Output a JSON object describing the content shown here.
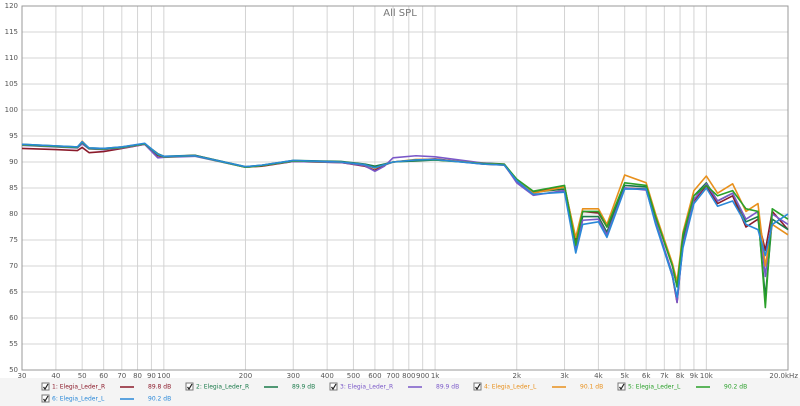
{
  "chart_data": {
    "type": "line",
    "title": "All SPL",
    "log_x": true,
    "grid": true,
    "x": [
      30,
      40,
      48,
      50,
      53,
      60,
      70,
      85,
      95,
      100,
      130,
      200,
      230,
      300,
      450,
      550,
      600,
      650,
      700,
      850,
      1000,
      1500,
      1800,
      2000,
      2300,
      3000,
      3300,
      3500,
      4000,
      4300,
      5000,
      6000,
      6500,
      7500,
      7800,
      8200,
      9000,
      10000,
      11000,
      12500,
      14000,
      15500,
      16500,
      17500,
      20000
    ],
    "xlim": [
      30,
      20000
    ],
    "xticks": [
      30,
      40,
      50,
      60,
      70,
      80,
      90,
      100,
      200,
      300,
      400,
      500,
      600,
      700,
      800,
      900,
      {
        "value": 1000,
        "label": "1k"
      },
      {
        "value": 2000,
        "label": "2k"
      },
      {
        "value": 3000,
        "label": "3k"
      },
      {
        "value": 4000,
        "label": "4k"
      },
      {
        "value": 5000,
        "label": "5k"
      },
      {
        "value": 6000,
        "label": "6k"
      },
      {
        "value": 7000,
        "label": "7k"
      },
      {
        "value": 8000,
        "label": "8k"
      },
      {
        "value": 9000,
        "label": "9k"
      },
      {
        "value": 10000,
        "label": "10k"
      },
      {
        "value": 20000,
        "label": "20.0kHz"
      }
    ],
    "ylim": [
      50,
      120
    ],
    "yticks": [
      50,
      55,
      60,
      65,
      70,
      75,
      80,
      85,
      90,
      95,
      100,
      105,
      110,
      115,
      120
    ],
    "series": [
      {
        "name": "1: Elegia_Leder_R",
        "color": "#8b1a2a",
        "level_label": "89.8 dB",
        "values": [
          92.6,
          92.4,
          92.2,
          92.8,
          91.8,
          92,
          92.6,
          93.4,
          91.2,
          91,
          91.3,
          89,
          89.2,
          90.1,
          89.9,
          89.2,
          88.4,
          89.4,
          90,
          90.4,
          90.6,
          89.6,
          89.4,
          86.2,
          84.2,
          85.4,
          75,
          80.5,
          80.2,
          77.5,
          85,
          84.8,
          78.5,
          68,
          63,
          74.5,
          82.5,
          85.5,
          82,
          83.5,
          77.5,
          79,
          73,
          80.5,
          77
        ]
      },
      {
        "name": "2: Elegia_Leder_R",
        "color": "#1a7a4a",
        "level_label": "89.9 dB",
        "values": [
          93.4,
          93.1,
          92.9,
          93.6,
          92.7,
          92.6,
          92.9,
          93.5,
          91.6,
          91.1,
          91.3,
          89.1,
          89.4,
          90.3,
          90.1,
          89.6,
          89.2,
          89.6,
          90,
          90.2,
          90.4,
          89.8,
          89.6,
          86.6,
          84.2,
          84.8,
          73.5,
          79.5,
          79.5,
          76.5,
          85.5,
          85.2,
          79.5,
          70,
          66,
          75.5,
          83.5,
          86,
          82.5,
          84,
          78.5,
          79.5,
          64,
          79,
          77
        ]
      },
      {
        "name": "3: Elegia_Leder_R",
        "color": "#7a58c8",
        "level_label": "89.9 dB",
        "values": [
          93.2,
          92.9,
          92.7,
          93.5,
          92.5,
          92.4,
          92.7,
          93.4,
          90.8,
          90.9,
          91.1,
          89,
          89.3,
          90.1,
          89.9,
          89.3,
          88.2,
          89.2,
          90.8,
          91.2,
          91,
          89.8,
          89.5,
          86,
          83.6,
          84.5,
          73,
          78.8,
          79,
          76,
          85,
          84.6,
          78.5,
          68.5,
          63,
          74,
          82.8,
          85.8,
          82.5,
          84,
          79,
          80.5,
          68,
          80,
          78
        ]
      },
      {
        "name": "4: Elegia_Leder_L",
        "color": "#e8901c",
        "level_label": "90.1 dB",
        "values": [
          93.3,
          93,
          92.8,
          94,
          92.6,
          92.5,
          92.8,
          93.5,
          91.5,
          91,
          91.2,
          89,
          89.3,
          90.2,
          90,
          89.5,
          88.8,
          89.5,
          90,
          90.5,
          90.5,
          89.7,
          89.5,
          86.5,
          84,
          85.2,
          75.5,
          81,
          81,
          78,
          87.5,
          86,
          80,
          70.5,
          67,
          76.5,
          84.5,
          87.3,
          84,
          85.8,
          80.5,
          82,
          70,
          78,
          76
        ]
      },
      {
        "name": "5: Elegia_Leder_L",
        "color": "#2aa02a",
        "level_label": "90.2 dB",
        "values": [
          93.3,
          93,
          92.8,
          93.8,
          92.6,
          92.5,
          92.8,
          93.5,
          91.4,
          91,
          91.2,
          89,
          89.3,
          90.2,
          90,
          89.5,
          88.9,
          89.5,
          90,
          90.4,
          90.4,
          89.7,
          89.5,
          86.7,
          84.4,
          85.5,
          74,
          80.5,
          80.5,
          77.5,
          86,
          85.5,
          79.5,
          70,
          66,
          76,
          83.5,
          85.5,
          83.5,
          84.5,
          81,
          80.5,
          62,
          81,
          79
        ]
      },
      {
        "name": "6: Elegia_Leder_L",
        "color": "#2a88d8",
        "level_label": "90.2 dB",
        "values": [
          93.4,
          93.1,
          92.9,
          93.9,
          92.7,
          92.6,
          92.9,
          93.6,
          91.5,
          91.1,
          91.2,
          89.1,
          89.4,
          90.3,
          90,
          89.5,
          88.9,
          89.5,
          90,
          90.4,
          90.5,
          89.6,
          89.4,
          86.4,
          83.8,
          84.2,
          72.5,
          78,
          78.5,
          75.5,
          84.8,
          84.8,
          78,
          68,
          64,
          73.5,
          82,
          85,
          81.5,
          82.5,
          78,
          77,
          72,
          78,
          80
        ]
      }
    ]
  }
}
